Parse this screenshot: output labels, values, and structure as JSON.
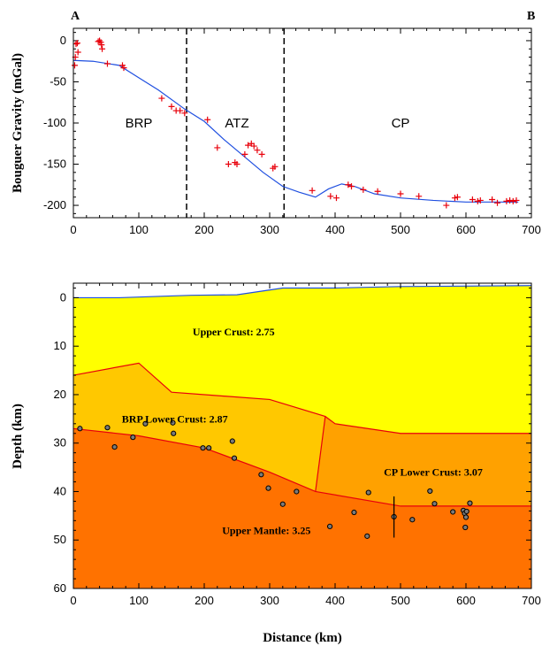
{
  "chart_data": [
    {
      "type": "scatter",
      "ylabel": "Bouguer Gravity (mGal)",
      "xlim": [
        0,
        700
      ],
      "ylim": [
        -215,
        15
      ],
      "x_ticks": [
        0,
        100,
        200,
        300,
        400,
        500,
        600,
        700
      ],
      "y_ticks": [
        0,
        -50,
        -100,
        -150,
        -200
      ],
      "corner_labels": [
        "A",
        "B"
      ],
      "region_labels": [
        {
          "text": "BRP",
          "x": 100,
          "y": -100
        },
        {
          "text": "ATZ",
          "x": 250,
          "y": -100
        },
        {
          "text": "CP",
          "x": 500,
          "y": -100
        }
      ],
      "boundaries": [
        173,
        322
      ],
      "colors": {
        "observed": "#e8000b",
        "calculated": "#1f4fe0"
      },
      "observed": [
        [
          2,
          -30
        ],
        [
          3,
          -20
        ],
        [
          4,
          -4
        ],
        [
          6,
          -3
        ],
        [
          7,
          -14
        ],
        [
          38,
          -1
        ],
        [
          40,
          0
        ],
        [
          42,
          -2
        ],
        [
          43,
          -5
        ],
        [
          44,
          -10
        ],
        [
          52,
          -28
        ],
        [
          75,
          -30
        ],
        [
          77,
          -33
        ],
        [
          135,
          -70
        ],
        [
          150,
          -80
        ],
        [
          157,
          -85
        ],
        [
          163,
          -85
        ],
        [
          170,
          -88
        ],
        [
          205,
          -96
        ],
        [
          220,
          -130
        ],
        [
          237,
          -150
        ],
        [
          247,
          -148
        ],
        [
          250,
          -150
        ],
        [
          262,
          -138
        ],
        [
          267,
          -127
        ],
        [
          272,
          -125
        ],
        [
          276,
          -128
        ],
        [
          281,
          -133
        ],
        [
          288,
          -138
        ],
        [
          305,
          -155
        ],
        [
          308,
          -153
        ],
        [
          365,
          -182
        ],
        [
          393,
          -189
        ],
        [
          402,
          -191
        ],
        [
          420,
          -175
        ],
        [
          425,
          -177
        ],
        [
          443,
          -181
        ],
        [
          465,
          -183
        ],
        [
          500,
          -186
        ],
        [
          528,
          -189
        ],
        [
          570,
          -200
        ],
        [
          583,
          -191
        ],
        [
          587,
          -190
        ],
        [
          610,
          -193
        ],
        [
          618,
          -195
        ],
        [
          622,
          -194
        ],
        [
          640,
          -193
        ],
        [
          648,
          -197
        ],
        [
          662,
          -195
        ],
        [
          667,
          -194
        ],
        [
          672,
          -195
        ],
        [
          677,
          -194
        ]
      ],
      "calculated": [
        [
          0,
          -24
        ],
        [
          30,
          -25
        ],
        [
          70,
          -30
        ],
        [
          100,
          -45
        ],
        [
          130,
          -60
        ],
        [
          170,
          -83
        ],
        [
          200,
          -98
        ],
        [
          230,
          -120
        ],
        [
          260,
          -140
        ],
        [
          290,
          -160
        ],
        [
          320,
          -177
        ],
        [
          345,
          -184
        ],
        [
          370,
          -190
        ],
        [
          390,
          -180
        ],
        [
          410,
          -174
        ],
        [
          430,
          -177
        ],
        [
          460,
          -186
        ],
        [
          500,
          -191
        ],
        [
          550,
          -194
        ],
        [
          600,
          -196
        ],
        [
          680,
          -196
        ]
      ]
    },
    {
      "type": "area",
      "xlabel": "Distance (km)",
      "ylabel": "Depth (km)",
      "xlim": [
        0,
        700
      ],
      "ylim": [
        60,
        -3
      ],
      "x_ticks": [
        0,
        100,
        200,
        300,
        400,
        500,
        600,
        700
      ],
      "y_ticks": [
        0,
        10,
        20,
        30,
        40,
        50,
        60
      ],
      "layers": [
        {
          "name": "Upper Crust: 2.75",
          "color": "#ffff00",
          "label_pos": [
            245,
            7
          ]
        },
        {
          "name": "BRP Lower Crust: 2.87",
          "color": "#ffc800",
          "label_pos": [
            155,
            25
          ]
        },
        {
          "name": "CP Lower Crust: 3.07",
          "color": "#ffa100",
          "label_pos": [
            550,
            36
          ]
        },
        {
          "name": "Upper Mantle: 3.25",
          "color": "#ff7200",
          "label_pos": [
            295,
            48
          ]
        }
      ],
      "topography": [
        [
          0,
          0
        ],
        [
          70,
          0
        ],
        [
          180,
          -0.5
        ],
        [
          250,
          -0.6
        ],
        [
          320,
          -2
        ],
        [
          400,
          -2
        ],
        [
          500,
          -2.3
        ],
        [
          700,
          -2.5
        ]
      ],
      "upper_crust_base": [
        [
          0,
          16
        ],
        [
          100,
          13.5
        ],
        [
          150,
          19.5
        ],
        [
          300,
          21
        ],
        [
          385,
          24.5
        ],
        [
          400,
          26
        ],
        [
          500,
          28
        ],
        [
          700,
          28
        ]
      ],
      "moho": [
        [
          0,
          27
        ],
        [
          100,
          28.5
        ],
        [
          200,
          31
        ],
        [
          300,
          36
        ],
        [
          370,
          40
        ],
        [
          500,
          43
        ],
        [
          700,
          43
        ]
      ],
      "terrane_boundary": [
        [
          385,
          24.5
        ],
        [
          370,
          40
        ]
      ],
      "stations": [
        [
          10,
          27
        ],
        [
          52,
          26.8
        ],
        [
          63,
          30.8
        ],
        [
          91,
          28.8
        ],
        [
          110,
          26
        ],
        [
          152,
          25.8
        ],
        [
          153,
          28
        ],
        [
          198,
          31
        ],
        [
          207,
          31
        ],
        [
          243,
          29.6
        ],
        [
          246,
          33.1
        ],
        [
          287,
          36.5
        ],
        [
          298,
          39.3
        ],
        [
          320,
          42.6
        ],
        [
          341,
          40
        ],
        [
          392,
          47.2
        ],
        [
          429,
          44.3
        ],
        [
          449,
          49.2
        ],
        [
          451,
          40.2
        ],
        [
          490,
          45.2
        ],
        [
          518,
          45.8
        ],
        [
          545,
          39.9
        ],
        [
          552,
          42.5
        ],
        [
          580,
          44.2
        ],
        [
          596,
          43.9
        ],
        [
          598,
          44.5
        ],
        [
          599,
          47.4
        ],
        [
          600,
          45.3
        ],
        [
          601,
          44.1
        ],
        [
          606,
          42.4
        ]
      ],
      "error_bar": {
        "x": 490,
        "ymin": 41,
        "ymax": 49.5
      },
      "colors": {
        "interface": "#e8000b",
        "surface": "#1f4fe0",
        "station_fill": "#7a7a7a"
      }
    }
  ]
}
